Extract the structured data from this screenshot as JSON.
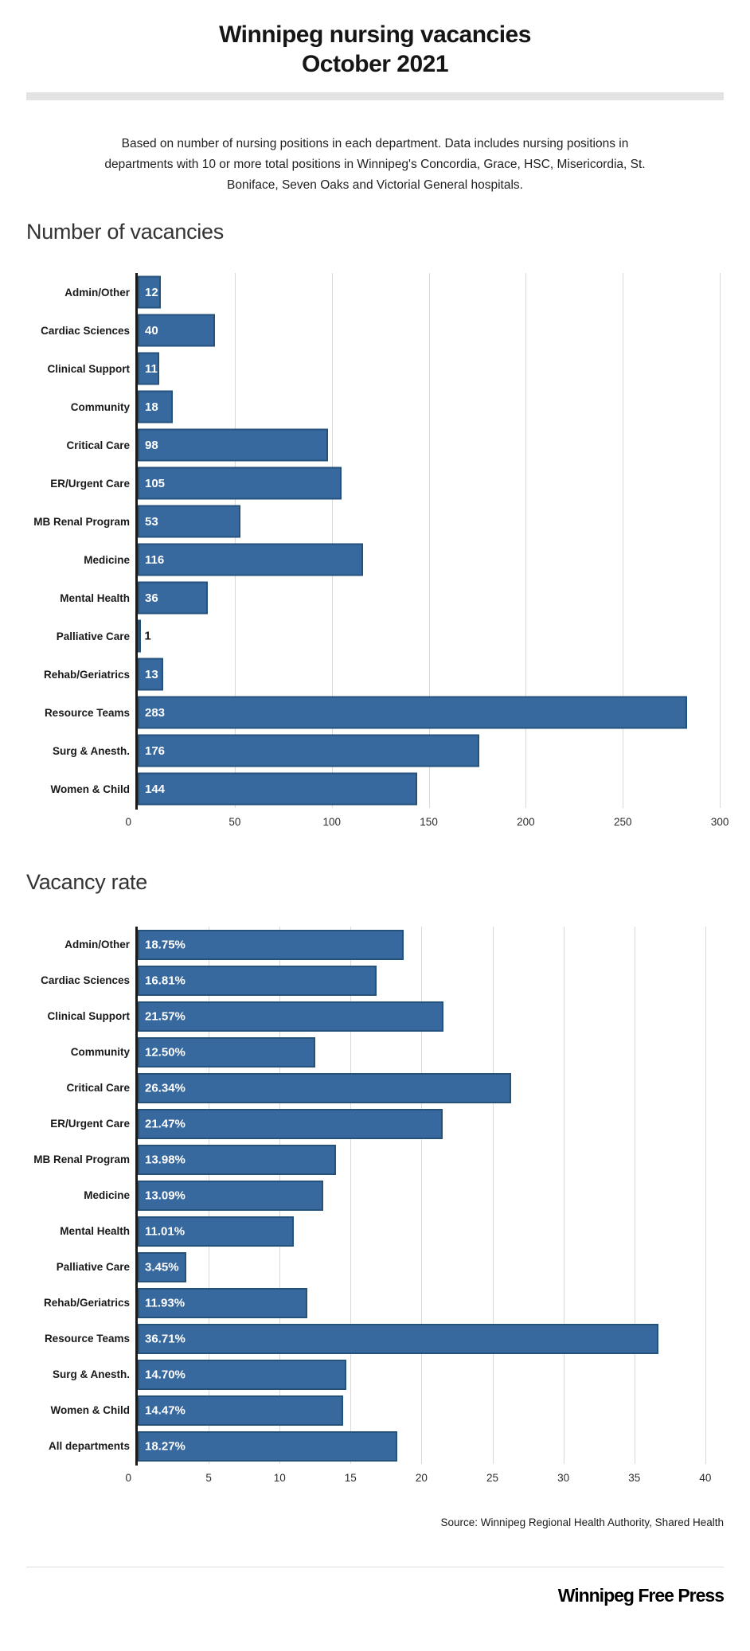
{
  "page": {
    "title_line1": "Winnipeg nursing vacancies",
    "title_line2": "October 2021",
    "description": "Based on number of nursing positions in each department. Data includes nursing positions in departments with 10 or more total positions in Winnipeg's Concordia, Grace, HSC, Misericordia, St. Boniface, Seven Oaks and Victorial General hospitals.",
    "source": "Source: Winnipeg Regional Health Authority, Shared Health",
    "footer_logo": "Winnipeg Free Press"
  },
  "colors": {
    "bar_fill": "#38699e",
    "bar_border": "#24527d",
    "axis_line": "#1a1a1a",
    "gridline": "#d9d9d9",
    "divider": "#e3e3e3"
  },
  "chart_data": [
    {
      "type": "bar",
      "orientation": "horizontal",
      "title": "Number of vacancies",
      "categories": [
        "Admin/Other",
        "Cardiac Sciences",
        "Clinical Support",
        "Community",
        "Critical Care",
        "ER/Urgent Care",
        "MB Renal Program",
        "Medicine",
        "Mental Health",
        "Palliative Care",
        "Rehab/Geriatrics",
        "Resource Teams",
        "Surg & Anesth.",
        "Women & Child"
      ],
      "values": [
        12,
        40,
        11,
        18,
        98,
        105,
        53,
        116,
        36,
        1,
        13,
        283,
        176,
        144
      ],
      "labels": [
        "12",
        "40",
        "11",
        "18",
        "98",
        "105",
        "53",
        "116",
        "36",
        "1",
        "13",
        "283",
        "176",
        "144"
      ],
      "xticks": [
        0,
        50,
        100,
        150,
        200,
        250,
        300
      ],
      "xlim": [
        0,
        302
      ],
      "xmax": 302,
      "grid": true,
      "legend": false,
      "value_labels_inside_bars": true
    },
    {
      "type": "bar",
      "orientation": "horizontal",
      "title": "Vacancy rate",
      "categories": [
        "Admin/Other",
        "Cardiac Sciences",
        "Clinical Support",
        "Community",
        "Critical Care",
        "ER/Urgent Care",
        "MB Renal Program",
        "Medicine",
        "Mental Health",
        "Palliative Care",
        "Rehab/Geriatrics",
        "Resource Teams",
        "Surg & Anesth.",
        "Women & Child",
        "All departments"
      ],
      "values": [
        18.75,
        16.81,
        21.57,
        12.5,
        26.34,
        21.47,
        13.98,
        13.09,
        11.01,
        3.45,
        11.93,
        36.71,
        14.7,
        14.47,
        18.27
      ],
      "labels": [
        "18.75%",
        "16.81%",
        "21.57%",
        "12.50%",
        "26.34%",
        "21.47%",
        "13.98%",
        "13.09%",
        "11.01%",
        "3.45%",
        "11.93%",
        "36.71%",
        "14.70%",
        "14.47%",
        "18.27%"
      ],
      "xticks": [
        0,
        5,
        10,
        15,
        20,
        25,
        30,
        35,
        40
      ],
      "xlim": [
        0,
        41.3
      ],
      "xmax": 41.3,
      "grid": true,
      "legend": false,
      "value_labels_inside_bars": true
    }
  ]
}
